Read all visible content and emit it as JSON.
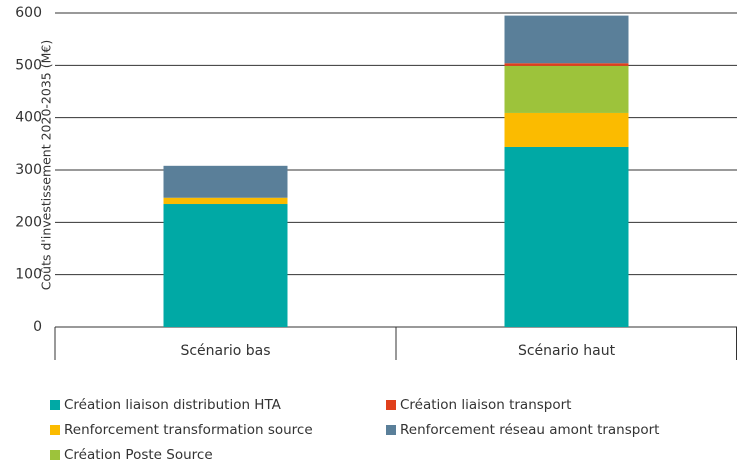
{
  "chart_data": {
    "type": "stacked_bar",
    "y_label": "Coûts d'investissement 2020-2035  (M€)",
    "categories": [
      "Scénario bas",
      "Scénario haut"
    ],
    "series": [
      {
        "name": "Création liaison distribution HTA",
        "color": "#00a9a5",
        "values": [
          235,
          344
        ]
      },
      {
        "name": "Renforcement transformation source",
        "color": "#fbbb00",
        "values": [
          12,
          65
        ]
      },
      {
        "name": "Création Poste Source",
        "color": "#9dc33b",
        "values": [
          0,
          90
        ]
      },
      {
        "name": "Création liaison transport",
        "color": "#e0401c",
        "values": [
          0,
          5
        ]
      },
      {
        "name": "Renforcement réseau amont transport",
        "color": "#5a7f99",
        "values": [
          61,
          91
        ]
      }
    ],
    "ylim": [
      0,
      600
    ],
    "yticks": [
      0,
      100,
      200,
      300,
      400,
      500,
      600
    ],
    "grid": true
  }
}
